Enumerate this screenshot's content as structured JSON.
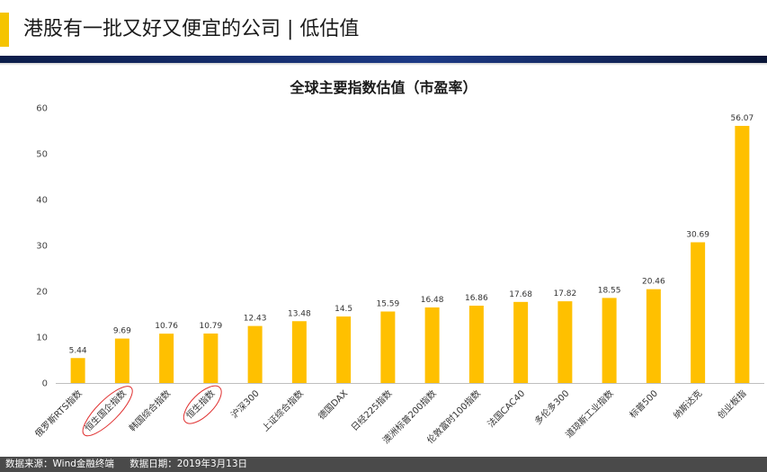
{
  "slide": {
    "title": "港股有一批又好又便宜的公司 | 低估值"
  },
  "colors": {
    "accent": "#F5C400",
    "bar": "#FFC000",
    "header_band": "#1d3a86",
    "highlight_ellipse": "#E03030",
    "footer_bg": "#4a4a4a"
  },
  "chart_data": {
    "type": "bar",
    "title": "全球主要指数估值（市盈率）",
    "categories": [
      "俄罗斯RTS指数",
      "恒生国企指数",
      "韩国综合指数",
      "恒生指数",
      "沪深300",
      "上证综合指数",
      "德国DAX",
      "日经225指数",
      "澳洲标普200指数",
      "伦敦富时100指数",
      "法国CAC40",
      "多伦多300",
      "道琼斯工业指数",
      "标普500",
      "纳斯达克",
      "创业板指"
    ],
    "values": [
      5.44,
      9.69,
      10.76,
      10.79,
      12.43,
      13.48,
      14.5,
      15.59,
      16.48,
      16.86,
      17.68,
      17.82,
      18.55,
      20.46,
      30.69,
      56.07
    ],
    "value_labels": [
      "5.44",
      "9.69",
      "10.76",
      "10.79",
      "12.43",
      "13.48",
      "14.5",
      "15.59",
      "16.48",
      "16.86",
      "17.68",
      "17.82",
      "18.55",
      "20.46",
      "30.69",
      "56.07"
    ],
    "highlighted_categories": [
      "恒生国企指数",
      "恒生指数"
    ],
    "ylim": [
      0,
      60
    ],
    "yticks": [
      0,
      10,
      20,
      30,
      40,
      50,
      60
    ],
    "grid": false,
    "legend": "none",
    "xlabel": "",
    "ylabel": ""
  },
  "footer": {
    "source": "数据来源：Wind金融终端",
    "date": "数据日期：2019年3月13日"
  }
}
